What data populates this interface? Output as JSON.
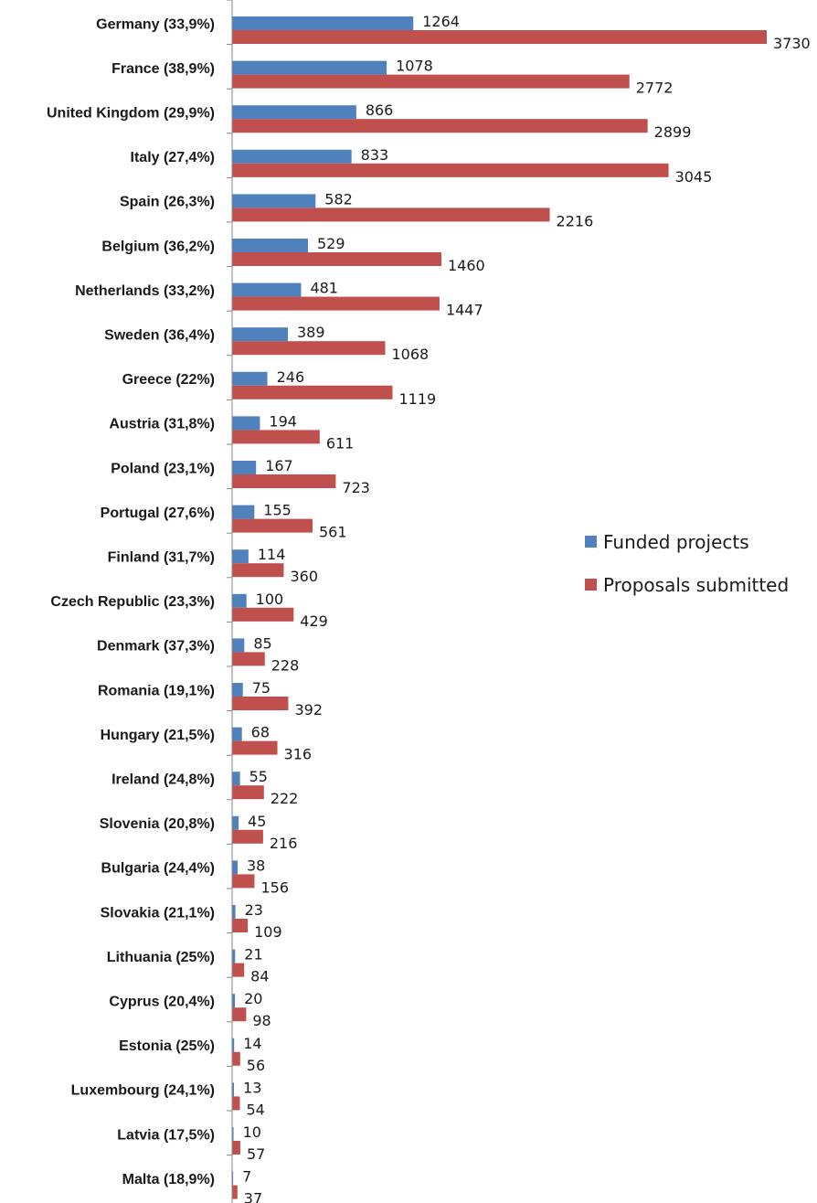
{
  "chart_data": {
    "type": "bar",
    "orientation": "horizontal",
    "categories": [
      "Germany (33,9%)",
      "France (38,9%)",
      "United Kingdom (29,9%)",
      "Italy (27,4%)",
      "Spain (26,3%)",
      "Belgium (36,2%)",
      "Netherlands (33,2%)",
      "Sweden (36,4%)",
      "Greece (22%)",
      "Austria (31,8%)",
      "Poland (23,1%)",
      "Portugal (27,6%)",
      "Finland (31,7%)",
      "Czech Republic (23,3%)",
      "Denmark (37,3%)",
      "Romania (19,1%)",
      "Hungary (21,5%)",
      "Ireland (24,8%)",
      "Slovenia (20,8%)",
      "Bulgaria (24,4%)",
      "Slovakia (21,1%)",
      "Lithuania (25%)",
      "Cyprus (20,4%)",
      "Estonia (25%)",
      "Luxembourg (24,1%)",
      "Latvia (17,5%)",
      "Malta (18,9%)"
    ],
    "series": [
      {
        "name": "Funded projects",
        "color": "#4f81bd",
        "values": [
          1264,
          1078,
          866,
          833,
          582,
          529,
          481,
          389,
          246,
          194,
          167,
          155,
          114,
          100,
          85,
          75,
          68,
          55,
          45,
          38,
          23,
          21,
          20,
          14,
          13,
          10,
          7
        ]
      },
      {
        "name": "Proposals submitted",
        "color": "#c0504d",
        "values": [
          3730,
          2772,
          2899,
          3045,
          2216,
          1460,
          1447,
          1068,
          1119,
          611,
          723,
          561,
          360,
          429,
          228,
          392,
          316,
          222,
          216,
          156,
          109,
          84,
          98,
          56,
          54,
          57,
          37
        ]
      }
    ],
    "xlim": [
      0,
      3730
    ],
    "grid": false,
    "legend_position": "right"
  }
}
